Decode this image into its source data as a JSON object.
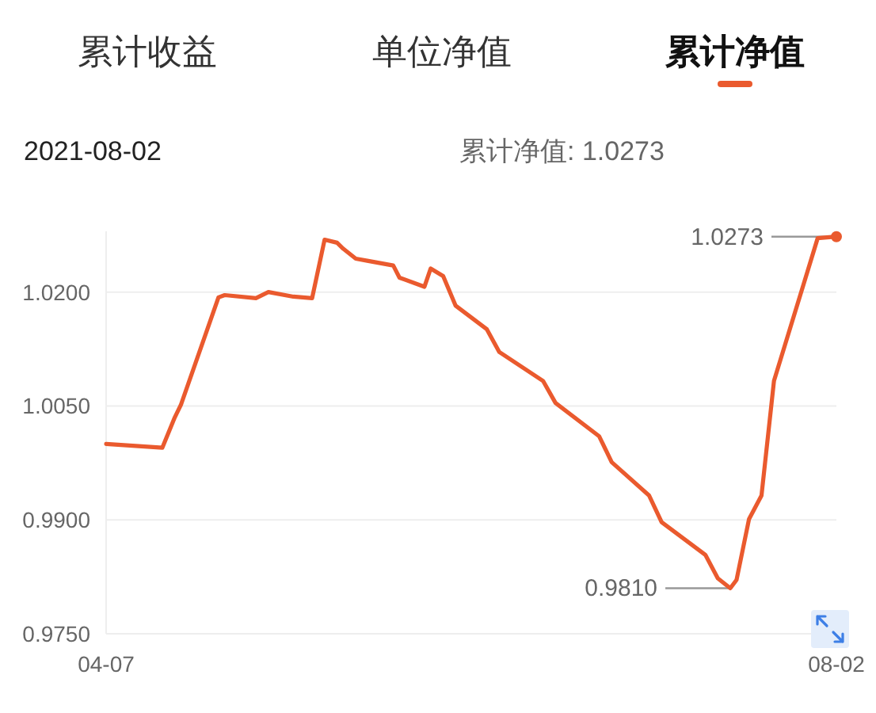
{
  "chart_data": {
    "type": "line",
    "title": "累计净值",
    "annotations": [
      "累计收益",
      "单位净值",
      "2021-08-02",
      "累计净值: 1.0273",
      {
        "text": "1.0273",
        "x": "2021-08-02",
        "y": 1.0273
      },
      {
        "text": "0.9810",
        "x": "2021-07-16",
        "y": 0.981
      }
    ],
    "x": [
      "2021-04-07",
      "2021-04-16",
      "2021-04-18",
      "2021-04-19",
      "2021-04-25",
      "2021-04-26",
      "2021-05-01",
      "2021-05-03",
      "2021-05-07",
      "2021-05-10",
      "2021-05-12",
      "2021-05-14",
      "2021-05-15",
      "2021-05-17",
      "2021-05-19",
      "2021-05-23",
      "2021-05-24",
      "2021-05-28",
      "2021-05-29",
      "2021-05-31",
      "2021-06-02",
      "2021-06-07",
      "2021-06-09",
      "2021-06-16",
      "2021-06-18",
      "2021-06-25",
      "2021-06-27",
      "2021-07-03",
      "2021-07-05",
      "2021-07-12",
      "2021-07-14",
      "2021-07-16",
      "2021-07-17",
      "2021-07-19",
      "2021-07-21",
      "2021-07-23",
      "2021-07-30",
      "2021-08-02"
    ],
    "series": [
      {
        "color": "#ea5a2e",
        "values": [
          1.0,
          0.9995,
          1.0035,
          1.0052,
          1.0193,
          1.0196,
          1.0192,
          1.02,
          1.0194,
          1.0192,
          1.0269,
          1.0265,
          1.0257,
          1.0244,
          1.0241,
          1.0235,
          1.0219,
          1.0207,
          1.0231,
          1.0221,
          1.0182,
          1.0151,
          1.0121,
          1.0083,
          1.0054,
          1.001,
          0.9976,
          0.9932,
          0.9897,
          0.9854,
          0.9823,
          0.981,
          0.9821,
          0.9901,
          0.9932,
          1.0083,
          1.0271,
          1.0273
        ]
      },
      {
        "type": "scatter",
        "color": "#ea5a2e",
        "x": [
          "2021-08-02"
        ],
        "values": [
          1.0273
        ]
      }
    ],
    "xlim": [
      "2021-04-07",
      "2021-08-02"
    ],
    "ylim": [
      0.975,
      1.028
    ],
    "xticks": [
      {
        "value": "2021-04-07",
        "label": "04-07"
      },
      {
        "value": "2021-08-02",
        "label": "08-02"
      }
    ],
    "yticks": [
      {
        "value": 0.975,
        "label": "0.9750"
      },
      {
        "value": 0.99,
        "label": "0.9900"
      },
      {
        "value": 1.005,
        "label": "1.0050"
      },
      {
        "value": 1.02,
        "label": "1.0200"
      }
    ],
    "grid": "y"
  }
}
